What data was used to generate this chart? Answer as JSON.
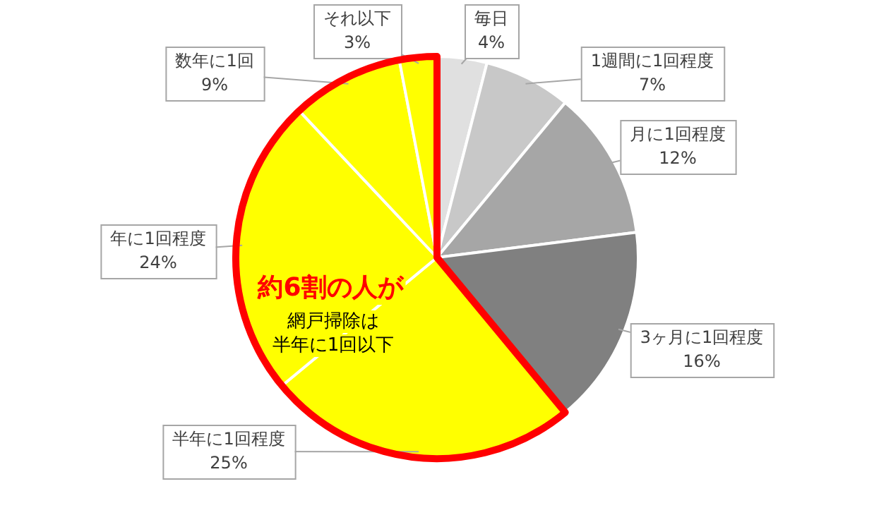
{
  "chart_data": {
    "type": "pie",
    "categories": [
      "毎日",
      "1週間に1回程度",
      "月に1回程度",
      "3ヶ月に1回程度",
      "半年に1回程度",
      "年に1回程度",
      "数年に1回",
      "それ以下"
    ],
    "values": [
      4,
      7,
      12,
      16,
      25,
      24,
      9,
      3
    ],
    "colors": [
      "#e0e0e0",
      "#c8c8c8",
      "#a6a6a6",
      "#808080",
      "#ffff00",
      "#ffff00",
      "#ffff00",
      "#ffff00"
    ],
    "value_labels": [
      "4%",
      "7%",
      "12%",
      "16%",
      "25%",
      "24%",
      "9%",
      "3%"
    ],
    "annotations": [
      "約6割の人が",
      "網戸掃除は",
      "半年に1回以下"
    ],
    "legend": false
  }
}
